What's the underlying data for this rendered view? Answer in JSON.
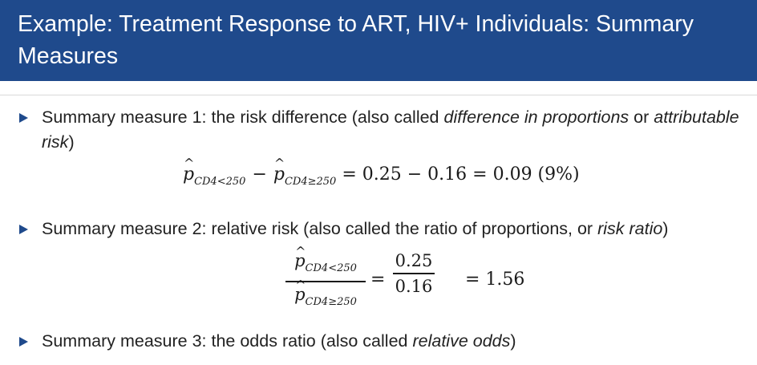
{
  "header": {
    "title": "Example: Treatment Response to ART, HIV+ Individuals: Summary Measures",
    "background_color": "#1f4a8c"
  },
  "bullets": [
    {
      "prefix": "Summary measure 1: the risk difference (also called ",
      "italic1": "difference in proportions",
      "middle": " or ",
      "italic2": "attributable risk",
      "suffix": ")"
    },
    {
      "prefix": "Summary measure 2: relative risk (also called the ratio of proportions, or ",
      "italic1": "risk ratio",
      "suffix": ")"
    },
    {
      "prefix": "Summary measure 3: the odds ratio (also called ",
      "italic1": "relative odds",
      "suffix": ")"
    }
  ],
  "equation1": {
    "p_symbol": "p",
    "hat": "^",
    "sub_low": "CD4<250",
    "sub_high": "CD4≥250",
    "minus": "−",
    "rhs": "= 0.25 − 0.16 = 0.09 (9%)"
  },
  "equation2": {
    "p_symbol": "p",
    "hat": "^",
    "sub_low": "CD4<250",
    "sub_high": "CD4≥250",
    "equals": "=",
    "num_value": "0.25",
    "den_value": "0.16",
    "result": "= 1.56"
  }
}
